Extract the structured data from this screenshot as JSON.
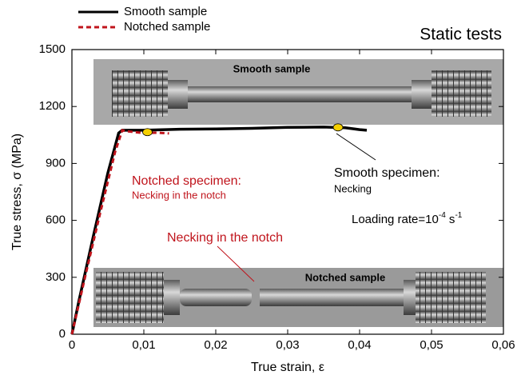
{
  "chart_data": {
    "type": "line",
    "title": "Static tests",
    "x_label": "True strain, ε",
    "y_label": "True stress, σ (MPa)",
    "xlim": [
      0,
      0.06
    ],
    "ylim": [
      0,
      1500
    ],
    "xticks": [
      0,
      {
        "value": 0.01,
        "label": "0,01"
      },
      {
        "value": 0.02,
        "label": "0,02"
      },
      {
        "value": 0.03,
        "label": "0,03"
      },
      {
        "value": 0.04,
        "label": "0,04"
      },
      {
        "value": 0.05,
        "label": "0,05"
      },
      {
        "value": 0.06,
        "label": "0,06"
      }
    ],
    "yticks": [
      0,
      300,
      600,
      900,
      1200,
      1500
    ],
    "legend": "top left outside",
    "series": [
      {
        "name": "Smooth sample",
        "color": "#000000",
        "line_style": "solid",
        "x": [
          0,
          0.001,
          0.003,
          0.005,
          0.0065,
          0.007,
          0.01,
          0.015,
          0.02,
          0.025,
          0.03,
          0.035,
          0.038,
          0.04,
          0.041
        ],
        "values": [
          0,
          180,
          520,
          850,
          1060,
          1075,
          1075,
          1080,
          1082,
          1085,
          1090,
          1092,
          1088,
          1078,
          1075
        ]
      },
      {
        "name": "Notched sample",
        "color": "#c0141c",
        "line_style": "dashed",
        "x": [
          0,
          0.002,
          0.004,
          0.006,
          0.007,
          0.0075,
          0.01,
          0.012,
          0.0135
        ],
        "values": [
          0,
          330,
          650,
          960,
          1075,
          1070,
          1060,
          1062,
          1058
        ]
      }
    ],
    "highlight_points": {
      "color": "#f5d000",
      "x": [
        0.0105,
        0.037
      ],
      "values": [
        1065,
        1090
      ]
    },
    "annotations": {
      "smooth_photo": "Smooth sample",
      "notched_photo": "Notched sample",
      "notched_specimen": "Notched specimen:",
      "notched_necking": "Necking in the notch",
      "smooth_specimen": "Smooth specimen:",
      "smooth_necking": "Necking",
      "notch_callout": "Necking in the notch",
      "rate_text": "Loading rate=10",
      "rate_exp": "-4",
      "rate_unit": " s",
      "rate_unit_exp": "-1"
    }
  }
}
